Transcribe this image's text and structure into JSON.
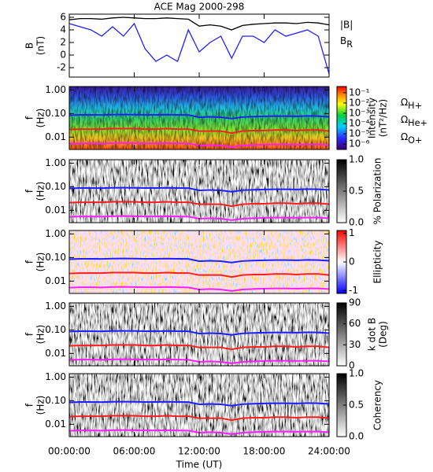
{
  "chart_data": [
    {
      "type": "line",
      "title": "ACE Mag 2000-298",
      "ylabel": [
        "B",
        "(nT)"
      ],
      "x": [
        0,
        1,
        2,
        3,
        4,
        5,
        6,
        7,
        8,
        9,
        10,
        11,
        12,
        13,
        14,
        15,
        16,
        17,
        18,
        19,
        20,
        21,
        22,
        23,
        24
      ],
      "xlim": [
        0,
        24
      ],
      "ylim": [
        -3.5,
        6.5
      ],
      "yticks": [
        -2,
        0,
        2,
        4,
        6
      ],
      "series": [
        {
          "name": "|B|",
          "color": "#000000",
          "values": [
            5.6,
            5.8,
            5.8,
            5.7,
            5.9,
            6.0,
            5.9,
            5.8,
            5.8,
            5.9,
            5.8,
            5.7,
            4.6,
            4.8,
            4.6,
            4.0,
            4.7,
            4.9,
            5.0,
            5.1,
            5.1,
            5.0,
            5.2,
            5.1,
            4.8
          ]
        },
        {
          "name": "B_R",
          "color": "#1f1fff",
          "values": [
            5.0,
            4.5,
            4.0,
            3.0,
            4.5,
            3.0,
            5.0,
            1.0,
            -1.0,
            0.0,
            -1.0,
            4.0,
            0.5,
            2.0,
            3.0,
            -0.5,
            3.0,
            3.0,
            2.0,
            4.0,
            3.0,
            3.5,
            4.0,
            3.0,
            -3.0
          ]
        }
      ]
    },
    {
      "type": "spectrogram",
      "ylabel": [
        "f",
        "(Hz)"
      ],
      "log_y": true,
      "ylim": [
        0.003,
        1.4
      ],
      "yticks": [
        {
          "value": 1,
          "label": "1.00"
        },
        {
          "value": 0.1,
          "label": "0.10"
        },
        {
          "value": 0.01,
          "label": "0.01"
        }
      ],
      "x": [
        0,
        1,
        2,
        3,
        4,
        5,
        6,
        7,
        8,
        9,
        10,
        11,
        12,
        13,
        14,
        15,
        16,
        17,
        18,
        19,
        20,
        21,
        22,
        23,
        24
      ],
      "xlim": [
        0,
        24
      ],
      "colorbar": {
        "label": [
          "Intensity",
          "(nT²/Hz)"
        ],
        "log": true,
        "lim": [
          3e-07,
          0.4
        ],
        "colormap": "rainbow",
        "ticks": [
          {
            "value": 0.1,
            "label": "10⁻¹"
          },
          {
            "value": 0.01,
            "label": "10⁻²"
          },
          {
            "value": 0.001,
            "label": "10⁻³"
          },
          {
            "value": 0.0001,
            "label": "10⁻⁴"
          },
          {
            "value": 1e-05,
            "label": "10⁻⁵"
          },
          {
            "value": 1e-06,
            "label": "10⁻⁶"
          }
        ]
      },
      "series": [
        {
          "name": "Ω_H+",
          "color": "#1f1fff",
          "values": [
            0.085,
            0.088,
            0.088,
            0.087,
            0.09,
            0.091,
            0.09,
            0.088,
            0.088,
            0.09,
            0.088,
            0.087,
            0.07,
            0.073,
            0.07,
            0.061,
            0.071,
            0.074,
            0.076,
            0.078,
            0.078,
            0.076,
            0.079,
            0.078,
            0.073
          ]
        },
        {
          "name": "Ω_He+",
          "color": "#ff1f1f",
          "values": [
            0.021,
            0.022,
            0.022,
            0.022,
            0.023,
            0.023,
            0.023,
            0.022,
            0.022,
            0.023,
            0.022,
            0.022,
            0.018,
            0.018,
            0.018,
            0.015,
            0.018,
            0.019,
            0.019,
            0.02,
            0.02,
            0.019,
            0.02,
            0.02,
            0.018
          ]
        },
        {
          "name": "Ω_O+",
          "color": "#ff1fff",
          "values": [
            0.0053,
            0.0055,
            0.0055,
            0.0054,
            0.0056,
            0.0057,
            0.0056,
            0.0055,
            0.0055,
            0.0056,
            0.0055,
            0.0054,
            0.0044,
            0.0046,
            0.0044,
            0.0038,
            0.0044,
            0.0046,
            0.0048,
            0.0049,
            0.0049,
            0.0048,
            0.0049,
            0.0049,
            0.0046
          ]
        }
      ]
    },
    {
      "type": "spectrogram",
      "ylabel": [
        "f",
        "(Hz)"
      ],
      "log_y": true,
      "ylim": [
        0.003,
        1.4
      ],
      "yticks": [
        {
          "value": 1,
          "label": "1.00"
        },
        {
          "value": 0.1,
          "label": "0.10"
        },
        {
          "value": 0.01,
          "label": "0.01"
        }
      ],
      "xlim": [
        0,
        24
      ],
      "colorbar": {
        "label": [
          "% Polarization"
        ],
        "lim": [
          0,
          1
        ],
        "colormap": "gray",
        "ticks": [
          {
            "value": 0,
            "label": "0.0"
          },
          {
            "value": 0.5,
            "label": "0.5"
          },
          {
            "value": 1,
            "label": "1.0"
          }
        ]
      }
    },
    {
      "type": "spectrogram",
      "ylabel": [
        "f",
        "(Hz)"
      ],
      "log_y": true,
      "ylim": [
        0.003,
        1.4
      ],
      "yticks": [
        {
          "value": 1,
          "label": "1.00"
        },
        {
          "value": 0.1,
          "label": "0.10"
        },
        {
          "value": 0.01,
          "label": "0.01"
        }
      ],
      "xlim": [
        0,
        24
      ],
      "colorbar": {
        "label": [
          "Ellipticity"
        ],
        "lim": [
          -1.1,
          1.1
        ],
        "colormap": "bwr",
        "ticks": [
          -1,
          0,
          1
        ]
      }
    },
    {
      "type": "spectrogram",
      "ylabel": [
        "f",
        "(Hz)"
      ],
      "log_y": true,
      "ylim": [
        0.003,
        1.4
      ],
      "yticks": [
        {
          "value": 1,
          "label": "1.00"
        },
        {
          "value": 0.1,
          "label": "0.10"
        },
        {
          "value": 0.01,
          "label": "0.01"
        }
      ],
      "xlim": [
        0,
        24
      ],
      "colorbar": {
        "label": [
          "k dot B",
          "(Deg)"
        ],
        "lim": [
          0,
          90
        ],
        "colormap": "gray",
        "ticks": [
          0,
          30,
          60,
          90
        ]
      }
    },
    {
      "type": "spectrogram",
      "ylabel": [
        "f",
        "(Hz)"
      ],
      "log_y": true,
      "ylim": [
        0.003,
        1.4
      ],
      "yticks": [
        {
          "value": 1,
          "label": "1.00"
        },
        {
          "value": 0.1,
          "label": "0.10"
        },
        {
          "value": 0.01,
          "label": "0.01"
        }
      ],
      "xlim": [
        0,
        24
      ],
      "colorbar": {
        "label": [
          "Coherency"
        ],
        "lim": [
          0,
          1
        ],
        "colormap": "gray",
        "ticks": [
          {
            "value": 0,
            "label": "0.0"
          },
          {
            "value": 0.5,
            "label": "0.5"
          },
          {
            "value": 1,
            "label": "1.0"
          }
        ]
      },
      "xticks": [
        {
          "value": 0,
          "label": "00:00:00"
        },
        {
          "value": 6,
          "label": "06:00:00"
        },
        {
          "value": 12,
          "label": "12:00:00"
        },
        {
          "value": 18,
          "label": "18:00:00"
        },
        {
          "value": 24,
          "label": "24:00:00"
        }
      ],
      "xlabel": "Time (UT)"
    }
  ]
}
